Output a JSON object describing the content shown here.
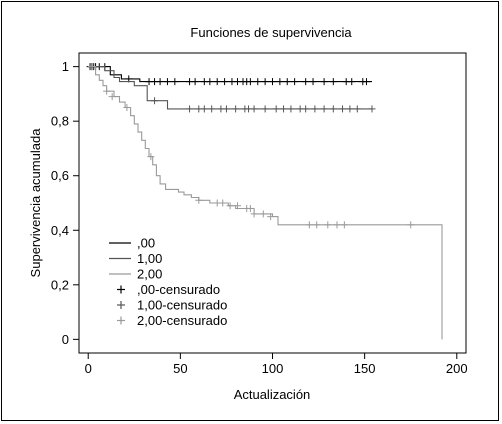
{
  "chart_data": {
    "type": "line",
    "subtype": "kaplan-meier survival",
    "title": "Funciones de supervivencia",
    "xlabel": "Actualización",
    "ylabel": "Supervivencia acumulada",
    "xlim": [
      -5,
      205
    ],
    "ylim": [
      -0.05,
      1.05
    ],
    "xticks": [
      0,
      50,
      100,
      150,
      200
    ],
    "xtick_labels": [
      "0",
      "50",
      "100",
      "150",
      "200"
    ],
    "yticks": [
      0,
      0.2,
      0.4,
      0.6,
      0.8,
      1
    ],
    "ytick_labels": [
      "0",
      "0,2",
      "0,4",
      "0,6",
      "0,8",
      "1"
    ],
    "grid": false,
    "legend_position": "bottom-left",
    "colors": {
      "frame": "#000000",
      "axes": "#000000"
    },
    "series": [
      {
        "name": ",00",
        "color": "#000000",
        "x": [
          0,
          3,
          12,
          12,
          18,
          18,
          28,
          28,
          154
        ],
        "y": [
          1,
          1,
          1,
          0.97,
          0.97,
          0.955,
          0.955,
          0.945,
          0.945
        ],
        "censored": {
          "name": ",00-censurado",
          "x": [
            1,
            2,
            3,
            4,
            6,
            9,
            22,
            33,
            36,
            39,
            43,
            47,
            55,
            58,
            63,
            66,
            70,
            74,
            78,
            81,
            84,
            86,
            88,
            92,
            96,
            100,
            104,
            108,
            112,
            118,
            122,
            128,
            133,
            140,
            143,
            149,
            151
          ],
          "y": [
            1,
            1,
            1,
            1,
            1,
            1,
            0.955,
            0.945,
            0.945,
            0.945,
            0.945,
            0.945,
            0.945,
            0.945,
            0.945,
            0.945,
            0.945,
            0.945,
            0.945,
            0.945,
            0.945,
            0.945,
            0.945,
            0.945,
            0.945,
            0.945,
            0.945,
            0.945,
            0.945,
            0.945,
            0.945,
            0.945,
            0.945,
            0.945,
            0.945,
            0.945,
            0.945
          ]
        }
      },
      {
        "name": "1,00",
        "color": "#555555",
        "x": [
          0,
          9,
          9,
          14,
          14,
          17,
          17,
          25,
          25,
          32,
          32,
          43,
          43,
          154
        ],
        "y": [
          1,
          1,
          0.985,
          0.985,
          0.96,
          0.96,
          0.945,
          0.945,
          0.93,
          0.93,
          0.875,
          0.875,
          0.845,
          0.845
        ],
        "censored": {
          "name": "1,00-censurado",
          "x": [
            2,
            36,
            55,
            60,
            63,
            67,
            72,
            75,
            80,
            85,
            87,
            90,
            96,
            102,
            106,
            110,
            115,
            118,
            123,
            128,
            133,
            138,
            142,
            146,
            154
          ],
          "y": [
            1,
            0.875,
            0.845,
            0.845,
            0.845,
            0.845,
            0.845,
            0.845,
            0.845,
            0.845,
            0.845,
            0.845,
            0.845,
            0.845,
            0.845,
            0.845,
            0.845,
            0.845,
            0.845,
            0.845,
            0.845,
            0.845,
            0.845,
            0.845,
            0.845
          ]
        }
      },
      {
        "name": "2,00",
        "color": "#9a9a9a",
        "x": [
          0,
          4,
          4,
          6,
          6,
          8,
          8,
          10,
          10,
          14,
          14,
          17,
          17,
          20,
          20,
          23,
          23,
          25,
          25,
          27,
          27,
          29,
          29,
          31,
          31,
          33,
          33,
          35,
          35,
          37,
          37,
          39,
          39,
          42,
          42,
          45,
          45,
          49,
          49,
          52,
          52,
          56,
          56,
          60,
          60,
          66,
          66,
          76,
          76,
          80,
          80,
          90,
          90,
          100,
          100,
          103,
          103,
          192,
          192
        ],
        "y": [
          1,
          1,
          0.97,
          0.97,
          0.95,
          0.95,
          0.93,
          0.93,
          0.91,
          0.91,
          0.89,
          0.89,
          0.87,
          0.87,
          0.85,
          0.85,
          0.82,
          0.82,
          0.79,
          0.79,
          0.76,
          0.76,
          0.73,
          0.73,
          0.7,
          0.7,
          0.67,
          0.67,
          0.64,
          0.64,
          0.6,
          0.6,
          0.57,
          0.57,
          0.55,
          0.55,
          0.55,
          0.55,
          0.54,
          0.54,
          0.53,
          0.53,
          0.52,
          0.52,
          0.51,
          0.51,
          0.5,
          0.5,
          0.49,
          0.49,
          0.48,
          0.48,
          0.46,
          0.46,
          0.45,
          0.45,
          0.42,
          0.42,
          0.0
        ],
        "censored": {
          "name": "2,00-censurado",
          "x": [
            10,
            13,
            21,
            34,
            60,
            70,
            73,
            77,
            81,
            86,
            88,
            90,
            95,
            99,
            120,
            124,
            130,
            135,
            139,
            175
          ],
          "y": [
            0.91,
            0.89,
            0.85,
            0.67,
            0.51,
            0.5,
            0.5,
            0.49,
            0.49,
            0.48,
            0.48,
            0.46,
            0.46,
            0.45,
            0.42,
            0.42,
            0.42,
            0.42,
            0.42,
            0.42
          ]
        }
      }
    ]
  }
}
